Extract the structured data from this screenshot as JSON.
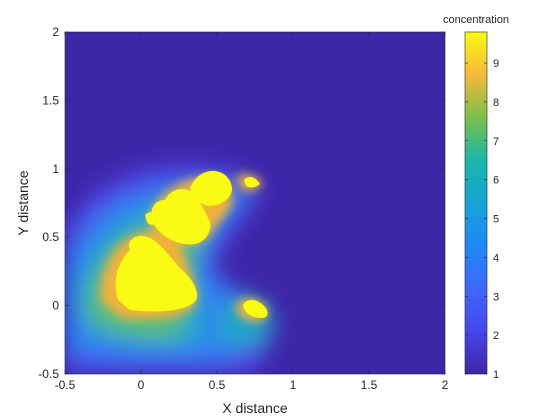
{
  "chart_data": {
    "type": "heatmap",
    "xlabel": "X distance",
    "ylabel": "Y distance",
    "xlim": [
      -0.5,
      2
    ],
    "ylim": [
      -0.5,
      2
    ],
    "xticks": [
      -0.5,
      0,
      0.5,
      1,
      1.5,
      2
    ],
    "xtick_labels": [
      "-0.5",
      "0",
      "0.5",
      "1",
      "1.5",
      "2"
    ],
    "yticks": [
      -0.5,
      0,
      0.5,
      1,
      1.5,
      2
    ],
    "ytick_labels": [
      "-0.5",
      "0",
      "0.5",
      "1",
      "1.5",
      "2"
    ],
    "colorbar": {
      "title": "concentration",
      "range": [
        1,
        9.8
      ],
      "ticks": [
        1,
        2,
        3,
        4,
        5,
        6,
        7,
        8,
        9
      ],
      "tick_labels": [
        "1",
        "2",
        "3",
        "4",
        "5",
        "6",
        "7",
        "8",
        "9"
      ],
      "colormap": "parula"
    },
    "background_value": 1,
    "plumes": [
      {
        "x": 0.1,
        "y": 0.18,
        "peak": 9.8
      },
      {
        "x": 0.18,
        "y": 0.45,
        "peak": 9.8
      },
      {
        "x": 0.3,
        "y": 0.67,
        "peak": 9.8
      },
      {
        "x": 0.45,
        "y": 0.83,
        "peak": 9.8
      },
      {
        "x": 0.75,
        "y": 0.87,
        "peak": 9.8
      },
      {
        "x": 0.75,
        "y": 0.0,
        "peak": 9.8
      }
    ],
    "grid": false
  }
}
